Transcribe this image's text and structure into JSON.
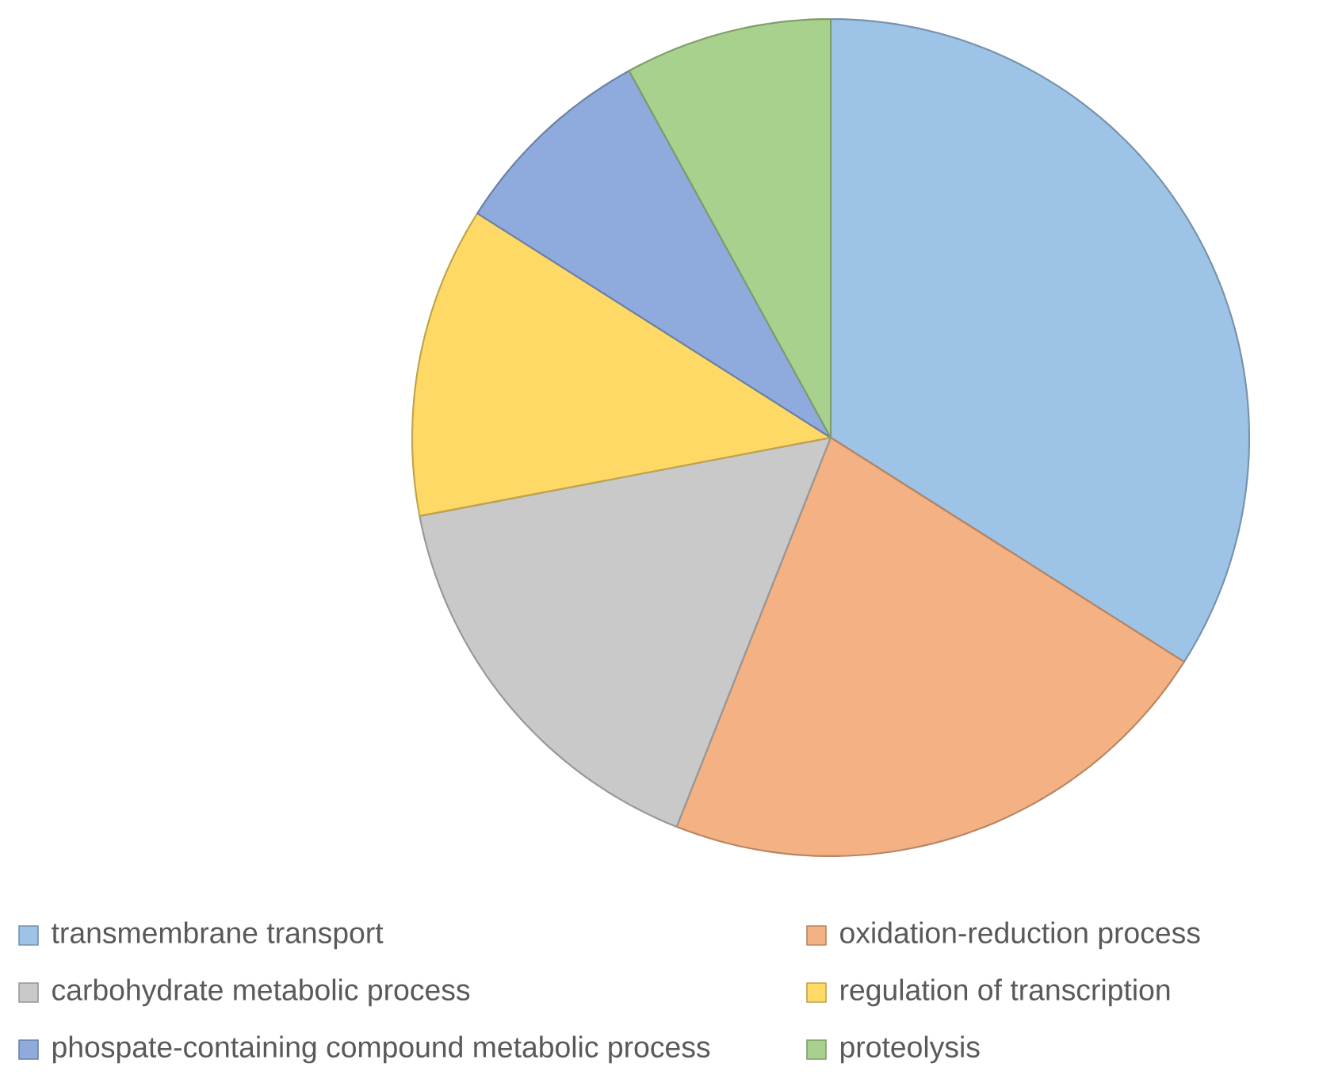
{
  "chart_data": {
    "type": "pie",
    "categories": [
      "transmembrane transport",
      "oxidation-reduction process",
      "carbohydrate metabolic process",
      "regulation of transcription",
      "phospate-containing compound metabolic process",
      "proteolysis"
    ],
    "values": [
      34,
      22,
      16,
      12,
      8,
      8
    ],
    "colors": [
      "#9dc3e6",
      "#f4b183",
      "#c9c9c9",
      "#ffd966",
      "#8faadc",
      "#a9d18e"
    ],
    "legend": "bottom"
  }
}
